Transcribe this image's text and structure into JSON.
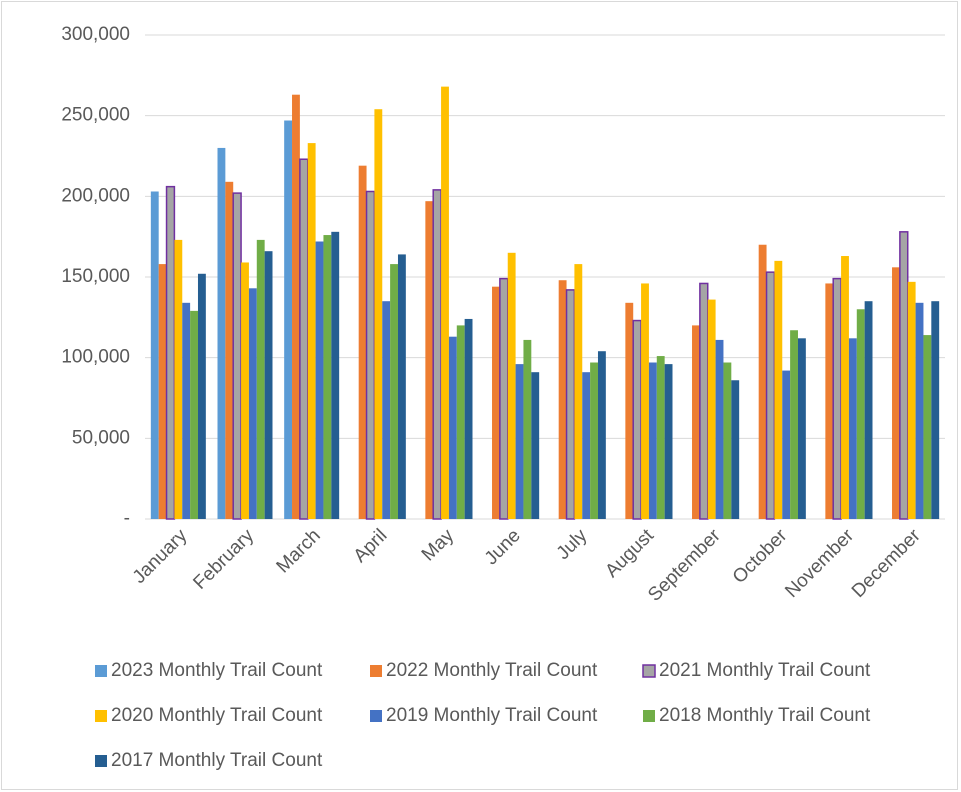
{
  "chart_data": {
    "type": "bar",
    "categories": [
      "January",
      "February",
      "March",
      "April",
      "May",
      "June",
      "July",
      "August",
      "September",
      "October",
      "November",
      "December"
    ],
    "series": [
      {
        "name": "2023 Monthly Trail Count",
        "color": "#5b9bd5",
        "values": [
          203000,
          230000,
          247000,
          null,
          null,
          null,
          null,
          null,
          null,
          null,
          null,
          null
        ]
      },
      {
        "name": "2022 Monthly Trail Count",
        "color": "#ed7d31",
        "values": [
          158000,
          209000,
          263000,
          219000,
          197000,
          144000,
          148000,
          134000,
          120000,
          170000,
          146000,
          156000
        ]
      },
      {
        "name": "2021 Monthly Trail Count",
        "color": "#a5a5a5",
        "edge_color": "#7030a0",
        "values": [
          206000,
          202000,
          223000,
          203000,
          204000,
          149000,
          142000,
          123000,
          146000,
          153000,
          149000,
          178000
        ]
      },
      {
        "name": "2020 Monthly Trail Count",
        "color": "#ffc000",
        "values": [
          173000,
          159000,
          233000,
          254000,
          268000,
          165000,
          158000,
          146000,
          136000,
          160000,
          163000,
          147000
        ]
      },
      {
        "name": "2019 Monthly Trail Count",
        "color": "#4472c4",
        "values": [
          134000,
          143000,
          172000,
          135000,
          113000,
          96000,
          91000,
          97000,
          111000,
          92000,
          112000,
          134000
        ]
      },
      {
        "name": "2018 Monthly Trail Count",
        "color": "#70ad47",
        "values": [
          129000,
          173000,
          176000,
          158000,
          120000,
          111000,
          97000,
          101000,
          97000,
          117000,
          130000,
          114000
        ]
      },
      {
        "name": "2017 Monthly Trail Count",
        "color": "#255e91",
        "values": [
          152000,
          166000,
          178000,
          164000,
          124000,
          91000,
          104000,
          96000,
          86000,
          112000,
          135000,
          135000
        ]
      }
    ],
    "ylim": [
      0,
      300000
    ],
    "yticks": [
      {
        "value": 0,
        "label": "-"
      },
      {
        "value": 50000,
        "label": "50,000"
      },
      {
        "value": 100000,
        "label": "100,000"
      },
      {
        "value": 150000,
        "label": "150,000"
      },
      {
        "value": 200000,
        "label": "200,000"
      },
      {
        "value": 250000,
        "label": "250,000"
      },
      {
        "value": 300000,
        "label": "300,000"
      }
    ],
    "grid": true,
    "legend": "bottom"
  }
}
